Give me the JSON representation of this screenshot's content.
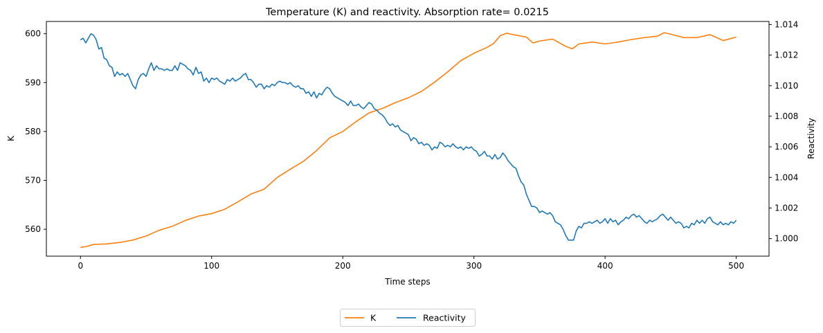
{
  "chart_data": {
    "type": "line",
    "title": "Temperature (K) and reactivity. Absorption rate= 0.0215",
    "xlabel": "Time steps",
    "ylabel_left": "K",
    "ylabel_right": "Reactivity",
    "xlim": [
      -26,
      525
    ],
    "ylim_left": [
      554.5,
      602.5
    ],
    "ylim_right": [
      0.99885,
      1.0142
    ],
    "x_ticks": [
      0,
      100,
      200,
      300,
      400,
      500
    ],
    "y_ticks_left": [
      560,
      570,
      580,
      590,
      600
    ],
    "y_ticks_right": [
      "1.000",
      "1.002",
      "1.004",
      "1.006",
      "1.008",
      "1.010",
      "1.012",
      "1.014"
    ],
    "legend_position": "bottom-center",
    "grid": false,
    "series": [
      {
        "name": "K",
        "axis": "left",
        "color": "#ff7f0e",
        "points": [
          [
            0,
            556.3
          ],
          [
            5,
            556.5
          ],
          [
            10,
            556.9
          ],
          [
            20,
            557.0
          ],
          [
            30,
            557.3
          ],
          [
            40,
            557.8
          ],
          [
            50,
            558.6
          ],
          [
            60,
            559.8
          ],
          [
            70,
            560.6
          ],
          [
            80,
            561.8
          ],
          [
            90,
            562.7
          ],
          [
            100,
            563.2
          ],
          [
            110,
            564.1
          ],
          [
            120,
            565.6
          ],
          [
            130,
            567.2
          ],
          [
            140,
            568.2
          ],
          [
            150,
            570.6
          ],
          [
            160,
            572.3
          ],
          [
            170,
            573.9
          ],
          [
            180,
            576.1
          ],
          [
            190,
            578.7
          ],
          [
            200,
            580.0
          ],
          [
            210,
            582.0
          ],
          [
            220,
            583.8
          ],
          [
            230,
            584.7
          ],
          [
            240,
            585.9
          ],
          [
            250,
            586.9
          ],
          [
            260,
            588.2
          ],
          [
            270,
            590.1
          ],
          [
            280,
            592.2
          ],
          [
            290,
            594.5
          ],
          [
            300,
            596.0
          ],
          [
            310,
            597.2
          ],
          [
            315,
            598.0
          ],
          [
            320,
            599.6
          ],
          [
            325,
            600.1
          ],
          [
            330,
            599.8
          ],
          [
            340,
            599.3
          ],
          [
            345,
            598.1
          ],
          [
            350,
            598.5
          ],
          [
            360,
            598.9
          ],
          [
            370,
            597.4
          ],
          [
            375,
            596.9
          ],
          [
            380,
            597.9
          ],
          [
            390,
            598.3
          ],
          [
            400,
            597.9
          ],
          [
            410,
            598.3
          ],
          [
            420,
            598.8
          ],
          [
            430,
            599.2
          ],
          [
            440,
            599.5
          ],
          [
            445,
            600.2
          ],
          [
            450,
            599.9
          ],
          [
            460,
            599.2
          ],
          [
            470,
            599.2
          ],
          [
            480,
            599.8
          ],
          [
            490,
            598.6
          ],
          [
            500,
            599.3
          ]
        ]
      },
      {
        "name": "Reactivity",
        "axis": "right",
        "color": "#1f77b4",
        "points": [
          [
            0,
            1.013
          ],
          [
            2,
            1.0131
          ],
          [
            4,
            1.0128
          ],
          [
            6,
            1.0131
          ],
          [
            8,
            1.0134
          ],
          [
            10,
            1.0133
          ],
          [
            12,
            1.013
          ],
          [
            14,
            1.0124
          ],
          [
            16,
            1.0125
          ],
          [
            18,
            1.0118
          ],
          [
            20,
            1.0117
          ],
          [
            22,
            1.0113
          ],
          [
            24,
            1.0112
          ],
          [
            26,
            1.0106
          ],
          [
            28,
            1.0109
          ],
          [
            30,
            1.0107
          ],
          [
            32,
            1.0108
          ],
          [
            34,
            1.0106
          ],
          [
            36,
            1.0108
          ],
          [
            38,
            1.0104
          ],
          [
            40,
            1.01
          ],
          [
            42,
            1.0098
          ],
          [
            44,
            1.0104
          ],
          [
            46,
            1.0107
          ],
          [
            48,
            1.0108
          ],
          [
            50,
            1.0106
          ],
          [
            52,
            1.0111
          ],
          [
            54,
            1.0115
          ],
          [
            56,
            1.011
          ],
          [
            58,
            1.0113
          ],
          [
            60,
            1.0111
          ],
          [
            62,
            1.0111
          ],
          [
            64,
            1.011
          ],
          [
            66,
            1.0111
          ],
          [
            68,
            1.011
          ],
          [
            70,
            1.011
          ],
          [
            72,
            1.0113
          ],
          [
            74,
            1.011
          ],
          [
            76,
            1.0115
          ],
          [
            78,
            1.0114
          ],
          [
            80,
            1.0113
          ],
          [
            82,
            1.0111
          ],
          [
            84,
            1.011
          ],
          [
            86,
            1.0107
          ],
          [
            88,
            1.0112
          ],
          [
            90,
            1.0108
          ],
          [
            92,
            1.0109
          ],
          [
            94,
            1.0103
          ],
          [
            96,
            1.0105
          ],
          [
            98,
            1.0102
          ],
          [
            100,
            1.0105
          ],
          [
            102,
            1.0104
          ],
          [
            104,
            1.0105
          ],
          [
            106,
            1.0103
          ],
          [
            108,
            1.0102
          ],
          [
            110,
            1.0101
          ],
          [
            112,
            1.0104
          ],
          [
            114,
            1.0103
          ],
          [
            116,
            1.0105
          ],
          [
            118,
            1.0103
          ],
          [
            120,
            1.0104
          ],
          [
            122,
            1.0105
          ],
          [
            124,
            1.0107
          ],
          [
            126,
            1.0108
          ],
          [
            128,
            1.0104
          ],
          [
            130,
            1.0104
          ],
          [
            132,
            1.0102
          ],
          [
            134,
            1.0099
          ],
          [
            136,
            1.0101
          ],
          [
            138,
            1.0101
          ],
          [
            140,
            1.0098
          ],
          [
            142,
            1.01
          ],
          [
            144,
            1.0099
          ],
          [
            146,
            1.0101
          ],
          [
            148,
            1.01
          ],
          [
            150,
            1.0102
          ],
          [
            152,
            1.0103
          ],
          [
            154,
            1.0102
          ],
          [
            156,
            1.0102
          ],
          [
            158,
            1.0101
          ],
          [
            160,
            1.0102
          ],
          [
            162,
            1.01
          ],
          [
            164,
            1.0099
          ],
          [
            166,
            1.01
          ],
          [
            168,
            1.0098
          ],
          [
            170,
            1.0098
          ],
          [
            172,
            1.0095
          ],
          [
            174,
            1.0096
          ],
          [
            176,
            1.0093
          ],
          [
            178,
            1.0096
          ],
          [
            180,
            1.0092
          ],
          [
            182,
            1.0095
          ],
          [
            184,
            1.0094
          ],
          [
            186,
            1.0097
          ],
          [
            188,
            1.0099
          ],
          [
            190,
            1.0098
          ],
          [
            192,
            1.0095
          ],
          [
            194,
            1.0093
          ],
          [
            196,
            1.0092
          ],
          [
            198,
            1.0091
          ],
          [
            200,
            1.009
          ],
          [
            202,
            1.0089
          ],
          [
            204,
            1.0087
          ],
          [
            206,
            1.009
          ],
          [
            208,
            1.0087
          ],
          [
            210,
            1.0087
          ],
          [
            212,
            1.0088
          ],
          [
            214,
            1.0086
          ],
          [
            216,
            1.0085
          ],
          [
            218,
            1.0087
          ],
          [
            220,
            1.0089
          ],
          [
            222,
            1.0088
          ],
          [
            224,
            1.0085
          ],
          [
            226,
            1.0084
          ],
          [
            228,
            1.0082
          ],
          [
            230,
            1.0081
          ],
          [
            232,
            1.0079
          ],
          [
            234,
            1.0076
          ],
          [
            236,
            1.0074
          ],
          [
            238,
            1.0075
          ],
          [
            240,
            1.0073
          ],
          [
            242,
            1.0074
          ],
          [
            244,
            1.0071
          ],
          [
            246,
            1.007
          ],
          [
            248,
            1.0069
          ],
          [
            250,
            1.0068
          ],
          [
            252,
            1.0064
          ],
          [
            254,
            1.0066
          ],
          [
            256,
            1.0065
          ],
          [
            258,
            1.0062
          ],
          [
            260,
            1.0063
          ],
          [
            262,
            1.0061
          ],
          [
            264,
            1.0062
          ],
          [
            266,
            1.0061
          ],
          [
            268,
            1.0058
          ],
          [
            270,
            1.006
          ],
          [
            272,
            1.0059
          ],
          [
            274,
            1.0063
          ],
          [
            276,
            1.0062
          ],
          [
            278,
            1.006
          ],
          [
            280,
            1.0061
          ],
          [
            282,
            1.006
          ],
          [
            284,
            1.0062
          ],
          [
            286,
            1.006
          ],
          [
            288,
            1.0059
          ],
          [
            290,
            1.006
          ],
          [
            292,
            1.0058
          ],
          [
            294,
            1.006
          ],
          [
            296,
            1.0059
          ],
          [
            298,
            1.006
          ],
          [
            300,
            1.0058
          ],
          [
            302,
            1.0057
          ],
          [
            304,
            1.0054
          ],
          [
            306,
            1.0055
          ],
          [
            308,
            1.0057
          ],
          [
            310,
            1.0054
          ],
          [
            312,
            1.0054
          ],
          [
            314,
            1.0052
          ],
          [
            316,
            1.0055
          ],
          [
            318,
            1.0052
          ],
          [
            320,
            1.0053
          ],
          [
            322,
            1.0056
          ],
          [
            324,
            1.0054
          ],
          [
            326,
            1.0051
          ],
          [
            328,
            1.0049
          ],
          [
            330,
            1.0047
          ],
          [
            332,
            1.0046
          ],
          [
            334,
            1.0041
          ],
          [
            336,
            1.0037
          ],
          [
            338,
            1.0035
          ],
          [
            340,
            1.0029
          ],
          [
            342,
            1.0025
          ],
          [
            344,
            1.0021
          ],
          [
            346,
            1.0021
          ],
          [
            348,
            1.002
          ],
          [
            350,
            1.0017
          ],
          [
            352,
            1.0018
          ],
          [
            354,
            1.0017
          ],
          [
            356,
            1.0016
          ],
          [
            358,
            1.0017
          ],
          [
            360,
            1.0015
          ],
          [
            362,
            1.0011
          ],
          [
            364,
            1.001
          ],
          [
            366,
            1.0009
          ],
          [
            368,
            1.0006
          ],
          [
            370,
            1.0002
          ],
          [
            372,
            0.9999
          ],
          [
            374,
            0.9999
          ],
          [
            376,
            0.9999
          ],
          [
            378,
            1.0005
          ],
          [
            380,
            1.0008
          ],
          [
            382,
            1.0007
          ],
          [
            384,
            1.001
          ],
          [
            386,
            1.001
          ],
          [
            388,
            1.0011
          ],
          [
            390,
            1.001
          ],
          [
            392,
            1.0011
          ],
          [
            394,
            1.0012
          ],
          [
            396,
            1.001
          ],
          [
            398,
            1.0011
          ],
          [
            400,
            1.0013
          ],
          [
            402,
            1.001
          ],
          [
            404,
            1.0013
          ],
          [
            406,
            1.0011
          ],
          [
            408,
            1.0012
          ],
          [
            410,
            1.0009
          ],
          [
            412,
            1.0011
          ],
          [
            414,
            1.0012
          ],
          [
            416,
            1.0014
          ],
          [
            418,
            1.0013
          ],
          [
            420,
            1.0015
          ],
          [
            422,
            1.0016
          ],
          [
            424,
            1.0014
          ],
          [
            426,
            1.0015
          ],
          [
            428,
            1.0013
          ],
          [
            430,
            1.0011
          ],
          [
            432,
            1.001
          ],
          [
            434,
            1.0012
          ],
          [
            436,
            1.0011
          ],
          [
            438,
            1.0012
          ],
          [
            440,
            1.0013
          ],
          [
            442,
            1.0015
          ],
          [
            444,
            1.0016
          ],
          [
            446,
            1.0014
          ],
          [
            448,
            1.0012
          ],
          [
            450,
            1.0014
          ],
          [
            452,
            1.0012
          ],
          [
            454,
            1.001
          ],
          [
            456,
            1.0011
          ],
          [
            458,
            1.001
          ],
          [
            460,
            1.0007
          ],
          [
            462,
            1.0008
          ],
          [
            464,
            1.0007
          ],
          [
            466,
            1.001
          ],
          [
            468,
            1.0009
          ],
          [
            470,
            1.0012
          ],
          [
            472,
            1.001
          ],
          [
            474,
            1.0012
          ],
          [
            476,
            1.001
          ],
          [
            478,
            1.0013
          ],
          [
            480,
            1.0014
          ],
          [
            482,
            1.0011
          ],
          [
            484,
            1.001
          ],
          [
            486,
            1.0009
          ],
          [
            488,
            1.0011
          ],
          [
            490,
            1.0009
          ],
          [
            492,
            1.001
          ],
          [
            494,
            1.0009
          ],
          [
            496,
            1.0011
          ],
          [
            498,
            1.001
          ],
          [
            500,
            1.0012
          ]
        ]
      }
    ]
  }
}
